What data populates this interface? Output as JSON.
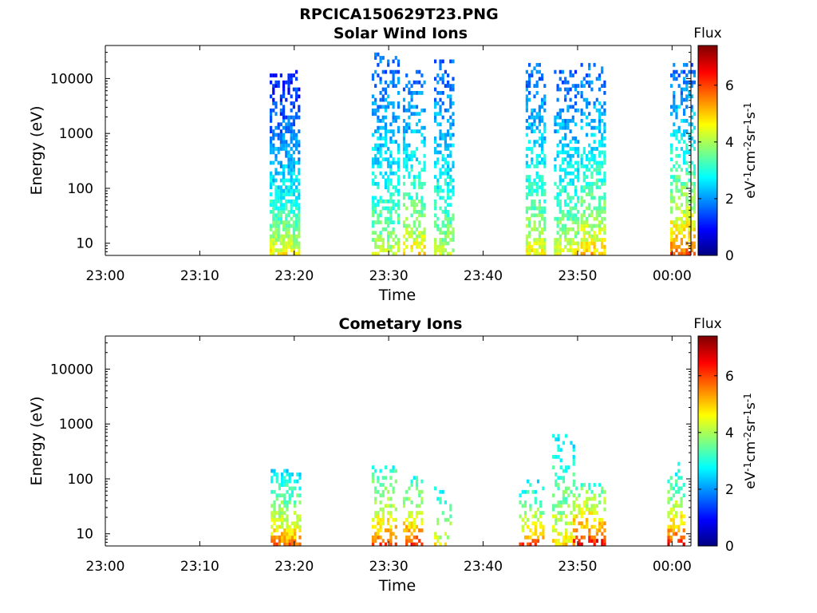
{
  "figure": {
    "file_title": "RPCICA150629T23.PNG"
  },
  "colorbar": {
    "title": "Flux",
    "label_parts": [
      "eV",
      "-1",
      "cm",
      "-2",
      "sr",
      "-1",
      "s",
      "-1"
    ],
    "ticks": [
      "0",
      "2",
      "4",
      "6"
    ],
    "range": [
      0,
      7.4
    ],
    "colormap": "jet"
  },
  "chart_data": [
    {
      "type": "heatmap",
      "title": "Solar Wind Ions",
      "xlabel": "Time",
      "ylabel": "Energy (eV)",
      "x_ticks": [
        "23:00",
        "23:10",
        "23:20",
        "23:30",
        "23:40",
        "23:50",
        "00:00"
      ],
      "y_ticks": [
        "10",
        "100",
        "1000",
        "10000"
      ],
      "y_scale": "log",
      "xlim_minutes_after_2300": [
        0,
        62
      ],
      "ylim_eV": [
        6,
        40000
      ],
      "bursts": [
        {
          "start": "23:17.4",
          "end": "23:20.6",
          "e_min": 6,
          "e_max": 14000,
          "flux_low_energy": 5.0,
          "flux_high_energy": 1.0,
          "density": 0.85
        },
        {
          "start": "23:28.2",
          "end": "23:31.0",
          "e_min": 6,
          "e_max": 30000,
          "flux_low_energy": 4.5,
          "flux_high_energy": 1.6,
          "density": 0.6
        },
        {
          "start": "23:31.5",
          "end": "23:33.8",
          "e_min": 6,
          "e_max": 15000,
          "flux_low_energy": 5.2,
          "flux_high_energy": 1.6,
          "density": 0.6
        },
        {
          "start": "23:34.8",
          "end": "23:36.8",
          "e_min": 6,
          "e_max": 22000,
          "flux_low_energy": 4.5,
          "flux_high_energy": 1.6,
          "density": 0.65
        },
        {
          "start": "23:44.5",
          "end": "23:46.5",
          "e_min": 6,
          "e_max": 20000,
          "flux_low_energy": 5.0,
          "flux_high_energy": 1.6,
          "density": 0.65
        },
        {
          "start": "23:47.5",
          "end": "23:50.0",
          "e_min": 6,
          "e_max": 15000,
          "flux_low_energy": 4.8,
          "flux_high_energy": 1.6,
          "density": 0.65
        },
        {
          "start": "23:50.3",
          "end": "23:52.8",
          "e_min": 6,
          "e_max": 20000,
          "flux_low_energy": 5.4,
          "flux_high_energy": 1.6,
          "density": 0.65
        },
        {
          "start": "23:59.8",
          "end": "00:02.3",
          "e_min": 6,
          "e_max": 20000,
          "flux_low_energy": 6.2,
          "flux_high_energy": 1.6,
          "density": 0.65
        }
      ]
    },
    {
      "type": "heatmap",
      "title": "Cometary Ions",
      "xlabel": "Time",
      "ylabel": "Energy (eV)",
      "x_ticks": [
        "23:00",
        "23:10",
        "23:20",
        "23:30",
        "23:40",
        "23:50",
        "00:00"
      ],
      "y_ticks": [
        "10",
        "100",
        "1000",
        "10000"
      ],
      "y_scale": "log",
      "xlim_minutes_after_2300": [
        0,
        62
      ],
      "ylim_eV": [
        6,
        40000
      ],
      "bursts": [
        {
          "start": "23:17.5",
          "end": "23:20.6",
          "e_min": 6,
          "e_max": 160,
          "flux_low_energy": 6.2,
          "flux_high_energy": 2.6,
          "density": 0.75
        },
        {
          "start": "23:28.2",
          "end": "23:30.8",
          "e_min": 6,
          "e_max": 180,
          "flux_low_energy": 6.5,
          "flux_high_energy": 3.0,
          "density": 0.5
        },
        {
          "start": "23:31.5",
          "end": "23:33.5",
          "e_min": 6,
          "e_max": 120,
          "flux_low_energy": 6.8,
          "flux_high_energy": 3.0,
          "density": 0.55
        },
        {
          "start": "23:34.8",
          "end": "23:36.5",
          "e_min": 6,
          "e_max": 100,
          "flux_low_energy": 5.0,
          "flux_high_energy": 2.6,
          "density": 0.4
        },
        {
          "start": "23:43.8",
          "end": "23:46.5",
          "e_min": 6,
          "e_max": 100,
          "flux_low_energy": 6.5,
          "flux_high_energy": 2.6,
          "density": 0.5
        },
        {
          "start": "23:47.3",
          "end": "23:49.5",
          "e_min": 6,
          "e_max": 700,
          "flux_low_energy": 5.2,
          "flux_high_energy": 2.6,
          "density": 0.5
        },
        {
          "start": "23:49.5",
          "end": "23:52.8",
          "e_min": 6,
          "e_max": 100,
          "flux_low_energy": 7.2,
          "flux_high_energy": 3.2,
          "density": 0.6
        },
        {
          "start": "23:59.5",
          "end": "00:01.3",
          "e_min": 6,
          "e_max": 200,
          "flux_low_energy": 7.0,
          "flux_high_energy": 2.6,
          "density": 0.55
        }
      ]
    }
  ]
}
